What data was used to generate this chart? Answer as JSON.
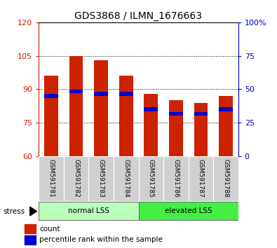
{
  "title": "GDS3868 / ILMN_1676663",
  "categories": [
    "GSM591781",
    "GSM591782",
    "GSM591783",
    "GSM591784",
    "GSM591785",
    "GSM591786",
    "GSM591787",
    "GSM591788"
  ],
  "bar_heights": [
    96,
    105,
    103,
    96,
    88,
    85,
    84,
    87
  ],
  "blue_values": [
    87,
    89,
    88,
    88,
    81,
    79,
    79,
    81
  ],
  "bar_color": "#cc2200",
  "blue_color": "#0000cc",
  "ylim_left": [
    60,
    120
  ],
  "ylim_right": [
    0,
    100
  ],
  "yticks_left": [
    60,
    75,
    90,
    105,
    120
  ],
  "yticks_right": [
    0,
    25,
    50,
    75,
    100
  ],
  "group_labels": [
    "normal LSS",
    "elevated LSS"
  ],
  "group_color_light": "#bbffbb",
  "group_color_dark": "#44ee44",
  "legend_count_label": "count",
  "legend_percentile_label": "percentile rank within the sample",
  "stress_label": "stress",
  "bar_width": 0.55,
  "background_color": "#ffffff"
}
